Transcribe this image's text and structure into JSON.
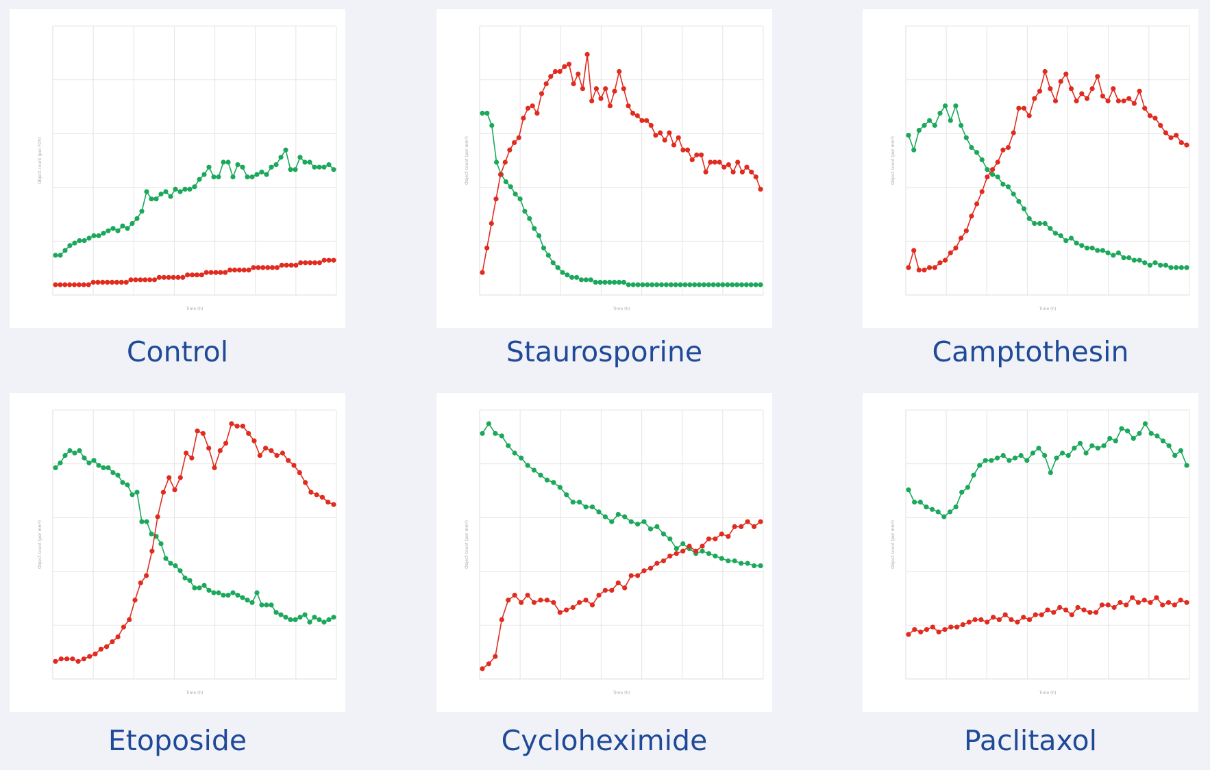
{
  "colors": {
    "green": "#1ba85a",
    "red": "#e02b1f",
    "label": "#1f4a97"
  },
  "chart_data": [
    {
      "type": "line",
      "title": "Control",
      "xlabel": "Time (h)",
      "ylabel": "Object count (per FOV)",
      "grid": true,
      "ylim": [
        0,
        1
      ],
      "xlim": [
        0,
        72
      ],
      "series": [
        {
          "color": "green",
          "values": [
            0.12,
            0.12,
            0.14,
            0.16,
            0.17,
            0.18,
            0.18,
            0.19,
            0.2,
            0.2,
            0.21,
            0.22,
            0.23,
            0.22,
            0.24,
            0.23,
            0.25,
            0.27,
            0.3,
            0.38,
            0.35,
            0.35,
            0.37,
            0.38,
            0.36,
            0.39,
            0.38,
            0.39,
            0.39,
            0.4,
            0.43,
            0.45,
            0.48,
            0.44,
            0.44,
            0.5,
            0.5,
            0.44,
            0.49,
            0.48,
            0.44,
            0.44,
            0.45,
            0.46,
            0.45,
            0.48,
            0.49,
            0.52,
            0.55,
            0.47,
            0.47,
            0.52,
            0.5,
            0.5,
            0.48,
            0.48,
            0.48,
            0.49,
            0.47
          ]
        },
        {
          "color": "red",
          "values": [
            0.0,
            0.0,
            0.0,
            0.0,
            0.0,
            0.0,
            0.0,
            0.0,
            0.01,
            0.01,
            0.01,
            0.01,
            0.01,
            0.01,
            0.01,
            0.01,
            0.02,
            0.02,
            0.02,
            0.02,
            0.02,
            0.02,
            0.03,
            0.03,
            0.03,
            0.03,
            0.03,
            0.03,
            0.04,
            0.04,
            0.04,
            0.04,
            0.05,
            0.05,
            0.05,
            0.05,
            0.05,
            0.06,
            0.06,
            0.06,
            0.06,
            0.06,
            0.07,
            0.07,
            0.07,
            0.07,
            0.07,
            0.07,
            0.08,
            0.08,
            0.08,
            0.08,
            0.09,
            0.09,
            0.09,
            0.09,
            0.09,
            0.1,
            0.1,
            0.1
          ]
        }
      ]
    },
    {
      "type": "line",
      "title": "Staurosporine",
      "xlabel": "Time (h)",
      "ylabel": "Object count (per mm²)",
      "grid": true,
      "ylim": [
        0,
        1
      ],
      "xlim": [
        0,
        72
      ],
      "series": [
        {
          "color": "green",
          "values": [
            0.7,
            0.7,
            0.65,
            0.5,
            0.45,
            0.42,
            0.4,
            0.37,
            0.35,
            0.3,
            0.27,
            0.23,
            0.2,
            0.15,
            0.12,
            0.09,
            0.07,
            0.05,
            0.04,
            0.03,
            0.03,
            0.02,
            0.02,
            0.02,
            0.01,
            0.01,
            0.01,
            0.01,
            0.01,
            0.01,
            0.01,
            0.0,
            0.0,
            0.0,
            0.0,
            0.0,
            0.0,
            0.0,
            0.0,
            0.0,
            0.0,
            0.0,
            0.0,
            0.0,
            0.0,
            0.0,
            0.0,
            0.0,
            0.0,
            0.0,
            0.0,
            0.0,
            0.0,
            0.0,
            0.0,
            0.0,
            0.0,
            0.0,
            0.0,
            0.0
          ]
        },
        {
          "color": "red",
          "values": [
            0.05,
            0.15,
            0.25,
            0.35,
            0.45,
            0.5,
            0.55,
            0.58,
            0.6,
            0.68,
            0.72,
            0.73,
            0.7,
            0.78,
            0.82,
            0.85,
            0.87,
            0.87,
            0.89,
            0.9,
            0.82,
            0.86,
            0.8,
            0.94,
            0.75,
            0.8,
            0.76,
            0.8,
            0.73,
            0.79,
            0.87,
            0.8,
            0.73,
            0.7,
            0.69,
            0.67,
            0.67,
            0.65,
            0.61,
            0.62,
            0.59,
            0.62,
            0.57,
            0.6,
            0.55,
            0.55,
            0.51,
            0.53,
            0.53,
            0.46,
            0.5,
            0.5,
            0.5,
            0.48,
            0.49,
            0.46,
            0.5,
            0.46,
            0.48,
            0.46,
            0.44,
            0.39
          ]
        }
      ]
    },
    {
      "type": "line",
      "title": "Camptothesin",
      "xlabel": "Time (h)",
      "ylabel": "Object count (per mm²)",
      "grid": true,
      "ylim": [
        0,
        1
      ],
      "xlim": [
        0,
        72
      ],
      "series": [
        {
          "color": "green",
          "values": [
            0.61,
            0.55,
            0.63,
            0.65,
            0.67,
            0.65,
            0.7,
            0.73,
            0.67,
            0.73,
            0.65,
            0.6,
            0.56,
            0.54,
            0.51,
            0.47,
            0.45,
            0.44,
            0.41,
            0.4,
            0.37,
            0.34,
            0.31,
            0.27,
            0.25,
            0.25,
            0.25,
            0.23,
            0.21,
            0.2,
            0.18,
            0.19,
            0.17,
            0.16,
            0.15,
            0.15,
            0.14,
            0.14,
            0.13,
            0.12,
            0.13,
            0.11,
            0.11,
            0.1,
            0.1,
            0.09,
            0.08,
            0.09,
            0.08,
            0.08,
            0.07,
            0.07,
            0.07,
            0.07
          ]
        },
        {
          "color": "red",
          "values": [
            0.07,
            0.14,
            0.06,
            0.06,
            0.07,
            0.07,
            0.09,
            0.1,
            0.13,
            0.15,
            0.19,
            0.22,
            0.28,
            0.33,
            0.38,
            0.44,
            0.47,
            0.5,
            0.55,
            0.56,
            0.62,
            0.72,
            0.72,
            0.69,
            0.76,
            0.79,
            0.87,
            0.8,
            0.75,
            0.83,
            0.86,
            0.8,
            0.75,
            0.78,
            0.76,
            0.8,
            0.85,
            0.77,
            0.75,
            0.8,
            0.75,
            0.75,
            0.76,
            0.74,
            0.79,
            0.72,
            0.69,
            0.68,
            0.65,
            0.62,
            0.6,
            0.61,
            0.58,
            0.57
          ]
        }
      ]
    },
    {
      "type": "line",
      "title": "Etoposide",
      "xlabel": "Time (h)",
      "ylabel": "Object count (per mm²)",
      "grid": true,
      "ylim": [
        0,
        1
      ],
      "xlim": [
        0,
        72
      ],
      "series": [
        {
          "color": "green",
          "values": [
            0.82,
            0.84,
            0.87,
            0.89,
            0.88,
            0.89,
            0.86,
            0.84,
            0.85,
            0.83,
            0.82,
            0.82,
            0.8,
            0.79,
            0.76,
            0.75,
            0.71,
            0.72,
            0.6,
            0.6,
            0.55,
            0.54,
            0.51,
            0.45,
            0.43,
            0.42,
            0.4,
            0.37,
            0.36,
            0.33,
            0.33,
            0.34,
            0.32,
            0.31,
            0.31,
            0.3,
            0.3,
            0.31,
            0.3,
            0.29,
            0.28,
            0.27,
            0.31,
            0.26,
            0.26,
            0.26,
            0.23,
            0.22,
            0.21,
            0.2,
            0.2,
            0.21,
            0.22,
            0.19,
            0.21,
            0.2,
            0.19,
            0.2,
            0.21
          ]
        },
        {
          "color": "red",
          "values": [
            0.03,
            0.04,
            0.04,
            0.04,
            0.03,
            0.04,
            0.05,
            0.06,
            0.08,
            0.09,
            0.11,
            0.13,
            0.17,
            0.2,
            0.28,
            0.35,
            0.38,
            0.48,
            0.62,
            0.72,
            0.78,
            0.73,
            0.78,
            0.88,
            0.86,
            0.97,
            0.96,
            0.9,
            0.82,
            0.89,
            0.92,
            1.0,
            0.99,
            0.99,
            0.96,
            0.93,
            0.87,
            0.9,
            0.89,
            0.87,
            0.88,
            0.85,
            0.83,
            0.8,
            0.76,
            0.72,
            0.71,
            0.7,
            0.68,
            0.67
          ]
        }
      ]
    },
    {
      "type": "line",
      "title": "Cycloheximide",
      "xlabel": "Time (h)",
      "ylabel": "Object count (per mm²)",
      "grid": true,
      "ylim": [
        0,
        1
      ],
      "xlim": [
        0,
        72
      ],
      "series": [
        {
          "color": "green",
          "values": [
            0.96,
            1.0,
            0.96,
            0.95,
            0.91,
            0.88,
            0.86,
            0.83,
            0.81,
            0.79,
            0.77,
            0.76,
            0.74,
            0.71,
            0.68,
            0.68,
            0.66,
            0.66,
            0.64,
            0.62,
            0.6,
            0.63,
            0.62,
            0.6,
            0.59,
            0.6,
            0.57,
            0.58,
            0.55,
            0.53,
            0.49,
            0.51,
            0.49,
            0.47,
            0.48,
            0.47,
            0.46,
            0.45,
            0.44,
            0.44,
            0.43,
            0.43,
            0.42,
            0.42
          ]
        },
        {
          "color": "red",
          "values": [
            0.0,
            0.02,
            0.05,
            0.2,
            0.28,
            0.3,
            0.27,
            0.3,
            0.27,
            0.28,
            0.28,
            0.27,
            0.23,
            0.24,
            0.25,
            0.27,
            0.28,
            0.26,
            0.3,
            0.32,
            0.32,
            0.35,
            0.33,
            0.38,
            0.38,
            0.4,
            0.41,
            0.43,
            0.44,
            0.46,
            0.47,
            0.48,
            0.5,
            0.48,
            0.5,
            0.53,
            0.53,
            0.55,
            0.54,
            0.58,
            0.58,
            0.6,
            0.58,
            0.6
          ]
        }
      ]
    },
    {
      "type": "line",
      "title": "Paclitaxol",
      "xlabel": "Time (h)",
      "ylabel": "Object count (per mm²)",
      "grid": true,
      "ylim": [
        0,
        1
      ],
      "xlim": [
        0,
        72
      ],
      "series": [
        {
          "color": "green",
          "values": [
            0.73,
            0.68,
            0.68,
            0.66,
            0.65,
            0.64,
            0.62,
            0.64,
            0.66,
            0.72,
            0.74,
            0.79,
            0.83,
            0.85,
            0.85,
            0.86,
            0.87,
            0.85,
            0.86,
            0.87,
            0.85,
            0.88,
            0.9,
            0.87,
            0.8,
            0.86,
            0.88,
            0.87,
            0.9,
            0.92,
            0.88,
            0.91,
            0.9,
            0.91,
            0.94,
            0.93,
            0.98,
            0.97,
            0.94,
            0.96,
            1.0,
            0.96,
            0.95,
            0.93,
            0.91,
            0.87,
            0.89,
            0.83
          ]
        },
        {
          "color": "red",
          "values": [
            0.14,
            0.16,
            0.15,
            0.16,
            0.17,
            0.15,
            0.16,
            0.17,
            0.17,
            0.18,
            0.19,
            0.2,
            0.2,
            0.19,
            0.21,
            0.2,
            0.22,
            0.2,
            0.19,
            0.21,
            0.2,
            0.22,
            0.22,
            0.24,
            0.23,
            0.25,
            0.24,
            0.22,
            0.25,
            0.24,
            0.23,
            0.23,
            0.26,
            0.26,
            0.25,
            0.27,
            0.26,
            0.29,
            0.27,
            0.28,
            0.27,
            0.29,
            0.26,
            0.27,
            0.26,
            0.28,
            0.27
          ]
        }
      ]
    }
  ]
}
